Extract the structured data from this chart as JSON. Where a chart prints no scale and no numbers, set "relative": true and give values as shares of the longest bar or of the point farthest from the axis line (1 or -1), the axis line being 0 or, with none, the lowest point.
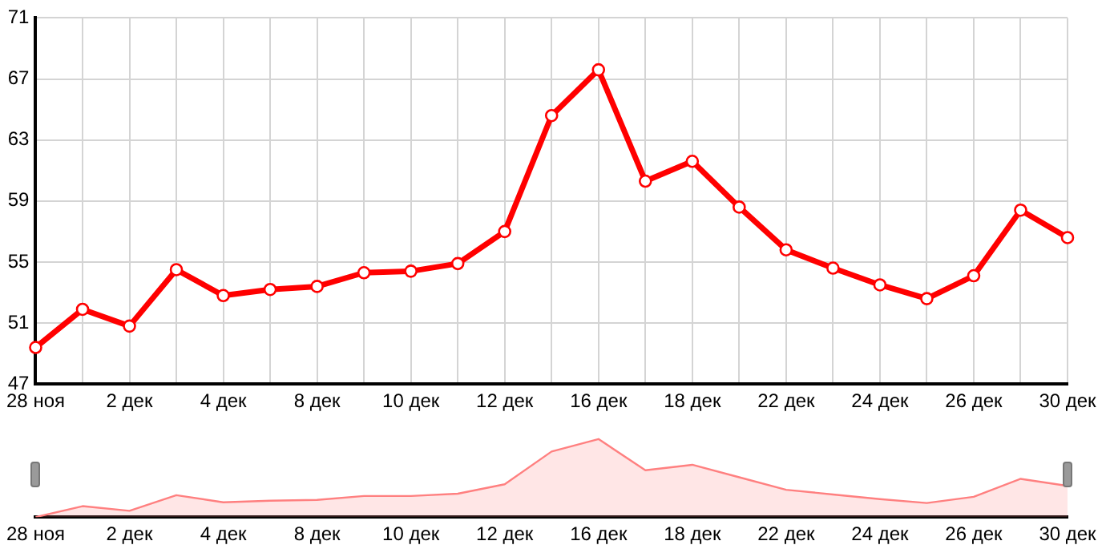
{
  "chart_data": [
    {
      "type": "line",
      "categories": [
        "28 ноя",
        null,
        "2 дек",
        null,
        "4 дек",
        null,
        "8 дек",
        null,
        "10 дек",
        null,
        "12 дек",
        null,
        "16 дек",
        null,
        "18 дек",
        null,
        "22 дек",
        null,
        "24 дек",
        null,
        "26 дек",
        null,
        "30 дек"
      ],
      "series": [
        {
          "color": "#ff0000",
          "values": [
            49.4,
            51.9,
            50.8,
            54.5,
            52.8,
            53.2,
            53.4,
            54.3,
            54.4,
            54.9,
            57.0,
            64.6,
            67.6,
            60.3,
            61.6,
            58.6,
            55.8,
            54.6,
            53.5,
            52.6,
            54.1,
            58.4,
            56.6
          ]
        }
      ],
      "ylim": [
        47,
        71
      ],
      "yticks": [
        47,
        51,
        55,
        59,
        63,
        67,
        71
      ],
      "grid": true,
      "marker": "circle",
      "line_style": "solid"
    },
    {
      "type": "area",
      "relative": true,
      "categories": [
        "28 ноя",
        null,
        "2 дек",
        null,
        "4 дек",
        null,
        "8 дек",
        null,
        "10 дек",
        null,
        "12 дек",
        null,
        "16 дек",
        null,
        "18 дек",
        null,
        "22 дек",
        null,
        "24 дек",
        null,
        "26 дек",
        null,
        "30 дек"
      ],
      "series": [
        {
          "color": "#ff8080",
          "values": [
            0,
            0.14,
            0.08,
            0.28,
            0.19,
            0.21,
            0.22,
            0.27,
            0.27,
            0.3,
            0.42,
            0.84,
            1,
            0.6,
            0.67,
            0.51,
            0.35,
            0.29,
            0.23,
            0.18,
            0.26,
            0.49,
            0.4
          ]
        }
      ],
      "grid": false,
      "marker": "none"
    }
  ]
}
